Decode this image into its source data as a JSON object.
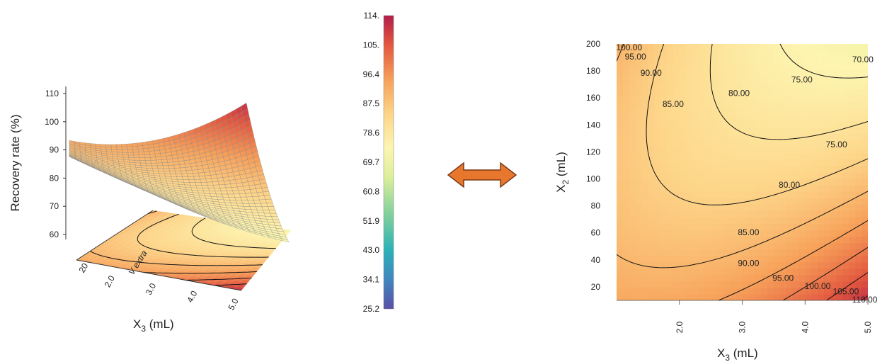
{
  "chart_data": [
    {
      "type": "surface",
      "title": "",
      "zlabel": "Recovery rate (%)",
      "xlabel_main": "X",
      "xlabel_sub": "3",
      "xlabel_unit": " (mL)",
      "depth_axis_label": "V extra",
      "z_ticks": [
        "110",
        "100",
        "90",
        "80",
        "70",
        "60"
      ],
      "x_ticks": [
        "2.0",
        "3.0",
        "4.0",
        "5.0"
      ],
      "depth_ticks": [
        "20"
      ],
      "zlim": [
        55,
        112
      ],
      "corners": {
        "x1_y200": 91,
        "x5_y200": 72,
        "x1_y10": 93,
        "x5_y10": 111
      }
    },
    {
      "type": "colorbar",
      "labels": [
        "114.",
        "105.",
        "96.4",
        "87.5",
        "78.6",
        "69.7",
        "60.8",
        "51.9",
        "43.0",
        "34.1",
        "25.2"
      ],
      "range": [
        25.2,
        114
      ]
    },
    {
      "type": "contour",
      "xlabel_main": "X",
      "xlabel_sub": "3",
      "xlabel_unit": " (mL)",
      "ylabel_main": "X",
      "ylabel_sub": "2",
      "ylabel_unit": " (mL)",
      "xlim": [
        1.0,
        5.0
      ],
      "ylim": [
        10,
        200
      ],
      "x_ticks": [
        "2.0",
        "3.0",
        "4.0",
        "5.0"
      ],
      "y_ticks": [
        "20",
        "40",
        "60",
        "80",
        "100",
        "120",
        "140",
        "160",
        "180",
        "200"
      ],
      "levels": [
        {
          "label": "70.00",
          "x": 4.92,
          "y": 188
        },
        {
          "label": "75.00",
          "x": 3.95,
          "y": 173
        },
        {
          "label": "75.00",
          "x": 4.5,
          "y": 125
        },
        {
          "label": "80.00",
          "x": 2.95,
          "y": 163
        },
        {
          "label": "80.00",
          "x": 3.75,
          "y": 95
        },
        {
          "label": "85.00",
          "x": 1.9,
          "y": 155
        },
        {
          "label": "85.00",
          "x": 3.1,
          "y": 60
        },
        {
          "label": "90.00",
          "x": 1.55,
          "y": 178
        },
        {
          "label": "90.00",
          "x": 3.1,
          "y": 37
        },
        {
          "label": "95.00",
          "x": 1.3,
          "y": 190
        },
        {
          "label": "95.00",
          "x": 3.65,
          "y": 26
        },
        {
          "label": "100.00",
          "x": 1.2,
          "y": 197
        },
        {
          "label": "100.00",
          "x": 4.2,
          "y": 20
        },
        {
          "label": "105.00",
          "x": 4.65,
          "y": 16
        },
        {
          "label": "110.00",
          "x": 4.95,
          "y": 10
        }
      ]
    }
  ],
  "arrow": {
    "color": "#e8772e",
    "stroke": "#7a3a16"
  }
}
